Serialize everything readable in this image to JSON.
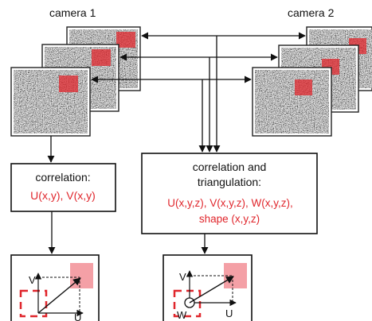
{
  "cameras": {
    "left_label": "camera 1",
    "right_label": "camera 2"
  },
  "box_2d": {
    "title": "correlation:",
    "fields": "U(x,y), V(x,y)"
  },
  "box_3d": {
    "title_line1": "correlation and",
    "title_line2": "triangulation:",
    "fields_line1": "U(x,y,z), V(x,y,z), W(x,y,z),",
    "fields_line2": "shape (x,y,z)"
  },
  "plot_2d": {
    "v_label": "V",
    "u_label": "U"
  },
  "plot_3d": {
    "v_label": "V",
    "u_label": "U",
    "w_label": "W"
  },
  "colors": {
    "highlight": "#e0262c",
    "target_fill": "#f4a0a6"
  }
}
